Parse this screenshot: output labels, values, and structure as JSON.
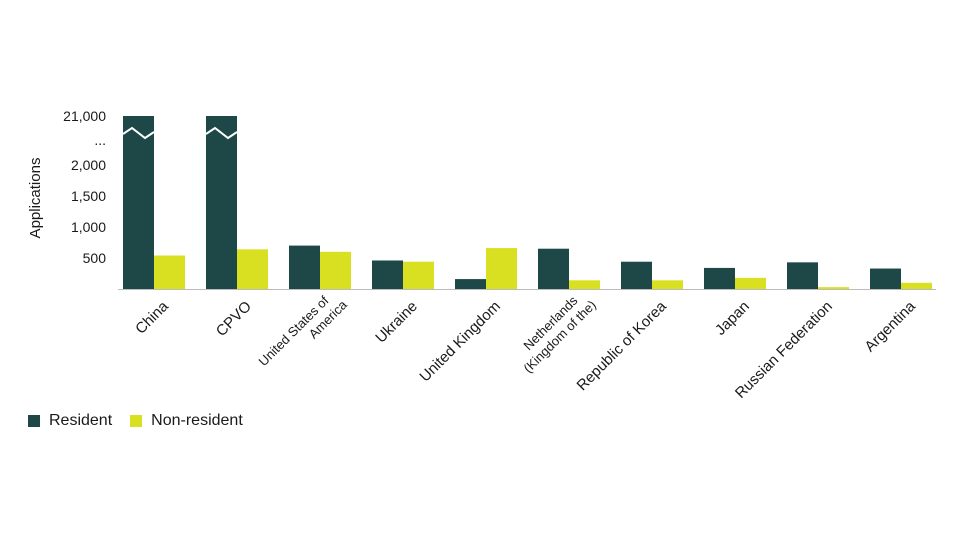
{
  "chart_data": {
    "type": "bar",
    "ylabel": "Applications",
    "categories": [
      "China",
      "CPVO",
      "United States of America",
      "Ukraine",
      "United Kingdom",
      "Netherlands (Kingdom of the)",
      "Republic of Korea",
      "Japan",
      "Russian Federation",
      "Argentina"
    ],
    "category_lines": [
      [
        "China"
      ],
      [
        "CPVO"
      ],
      [
        "United States of",
        "America"
      ],
      [
        "Ukraine"
      ],
      [
        "United Kingdom"
      ],
      [
        "Netherlands",
        "(Kingdom of the)"
      ],
      [
        "Republic of Korea"
      ],
      [
        "Japan"
      ],
      [
        "Russian Federation"
      ],
      [
        "Argentina"
      ]
    ],
    "series": [
      {
        "name": "Resident",
        "color": "#1e4848",
        "values": [
          21000,
          2250,
          700,
          460,
          160,
          650,
          440,
          340,
          430,
          330
        ]
      },
      {
        "name": "Non-resident",
        "color": "#d9e021",
        "values": [
          540,
          640,
          600,
          440,
          660,
          140,
          140,
          180,
          30,
          100
        ]
      }
    ],
    "yticks": [
      "500",
      "1,000",
      "1,500",
      "2,000",
      "...",
      "21,000"
    ],
    "axis_break": {
      "from": 2000,
      "to": 21000
    },
    "ylim": [
      0,
      21000
    ],
    "legend_position": "bottom-left"
  }
}
